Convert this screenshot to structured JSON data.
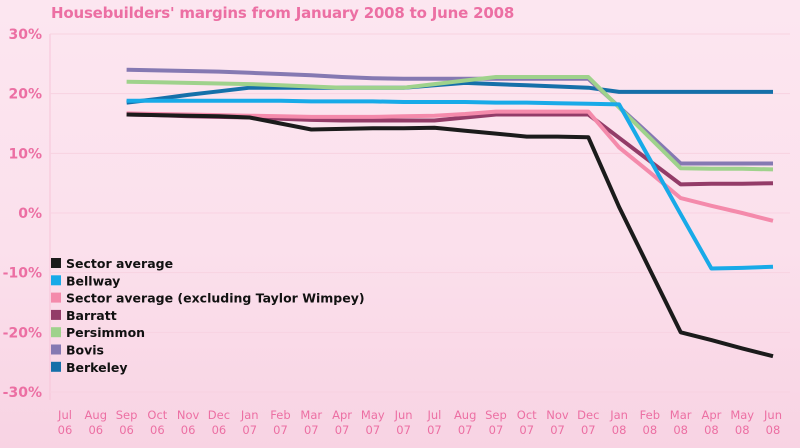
{
  "chart_data": {
    "type": "line",
    "title": "Housebuilders' margins from January 2008 to June 2008",
    "xlabel": "",
    "ylabel": "",
    "ylim": [
      -30,
      30
    ],
    "yticks": [
      "30%",
      "20%",
      "10%",
      "0%",
      "-10%",
      "-20%",
      "-30%"
    ],
    "ytick_values": [
      30,
      20,
      10,
      0,
      -10,
      -20,
      -30
    ],
    "categories": [
      {
        "m": "Jul",
        "y": "06"
      },
      {
        "m": "Aug",
        "y": "06"
      },
      {
        "m": "Sep",
        "y": "06"
      },
      {
        "m": "Oct",
        "y": "06"
      },
      {
        "m": "Nov",
        "y": "06"
      },
      {
        "m": "Dec",
        "y": "06"
      },
      {
        "m": "Jan",
        "y": "07"
      },
      {
        "m": "Feb",
        "y": "07"
      },
      {
        "m": "Mar",
        "y": "07"
      },
      {
        "m": "Apr",
        "y": "07"
      },
      {
        "m": "May",
        "y": "07"
      },
      {
        "m": "Jun",
        "y": "07"
      },
      {
        "m": "Jul",
        "y": "07"
      },
      {
        "m": "Aug",
        "y": "07"
      },
      {
        "m": "Sep",
        "y": "07"
      },
      {
        "m": "Oct",
        "y": "07"
      },
      {
        "m": "Nov",
        "y": "07"
      },
      {
        "m": "Dec",
        "y": "07"
      },
      {
        "m": "Jan",
        "y": "08"
      },
      {
        "m": "Feb",
        "y": "08"
      },
      {
        "m": "Mar",
        "y": "08"
      },
      {
        "m": "Apr",
        "y": "08"
      },
      {
        "m": "May",
        "y": "08"
      },
      {
        "m": "Jun",
        "y": "08"
      }
    ],
    "legend_position": "bottom-left",
    "series": [
      {
        "name": "Sector average",
        "color": "#1b1b1b",
        "values": [
          null,
          null,
          16.5,
          16.4,
          16.3,
          16.2,
          16,
          15,
          14,
          14.1,
          14.2,
          14.2,
          14.3,
          13.8,
          13.3,
          12.8,
          12.8,
          12.7,
          1,
          -9.5,
          -20,
          -21.3,
          -22.7,
          -24
        ]
      },
      {
        "name": "Bellway",
        "color": "#18aae8",
        "values": [
          null,
          null,
          18.8,
          18.8,
          18.8,
          18.8,
          18.8,
          18.8,
          18.7,
          18.7,
          18.7,
          18.6,
          18.6,
          18.6,
          18.5,
          18.5,
          18.4,
          18.3,
          18.2,
          9,
          -0.2,
          -9.3,
          -9.2,
          -9
        ]
      },
      {
        "name": "Sector average (excluding Taylor Wimpey)",
        "color": "#f48aab",
        "values": [
          null,
          null,
          16.7,
          16.6,
          16.5,
          16.4,
          16.3,
          16.2,
          16.1,
          16.1,
          16.1,
          16.2,
          16.3,
          16.6,
          17,
          17,
          17,
          17,
          11,
          6.8,
          2.5,
          1.2,
          0,
          -1.3
        ]
      },
      {
        "name": "Barratt",
        "color": "#933c68",
        "values": [
          null,
          null,
          16.5,
          16.4,
          16.2,
          16.1,
          16,
          15.8,
          15.6,
          15.5,
          15.5,
          15.5,
          15.5,
          16,
          16.5,
          16.5,
          16.5,
          16.5,
          12.6,
          8.7,
          4.8,
          4.9,
          4.9,
          5
        ]
      },
      {
        "name": "Persimmon",
        "color": "#9fd28c",
        "values": [
          null,
          null,
          22,
          21.9,
          21.8,
          21.7,
          21.6,
          21.4,
          21.2,
          21,
          21,
          21,
          21.6,
          22.2,
          22.8,
          22.8,
          22.8,
          22.8,
          17.7,
          12.6,
          7.5,
          7.4,
          7.4,
          7.3
        ]
      },
      {
        "name": "Bovis",
        "color": "#8579b2",
        "values": [
          null,
          null,
          24,
          23.9,
          23.8,
          23.7,
          23.5,
          23.3,
          23.1,
          22.8,
          22.6,
          22.5,
          22.5,
          22.5,
          22.5,
          22.5,
          22.5,
          22.5,
          17.8,
          13.1,
          8.3,
          8.3,
          8.3,
          8.3
        ]
      },
      {
        "name": "Berkeley",
        "color": "#1570a9",
        "values": [
          null,
          null,
          18.5,
          19.1,
          19.8,
          20.4,
          21,
          21,
          21,
          21,
          21,
          21,
          21.4,
          21.8,
          21.6,
          21.4,
          21.2,
          21,
          20.3,
          20.3,
          20.3,
          20.3,
          20.3,
          20.3
        ]
      }
    ]
  }
}
